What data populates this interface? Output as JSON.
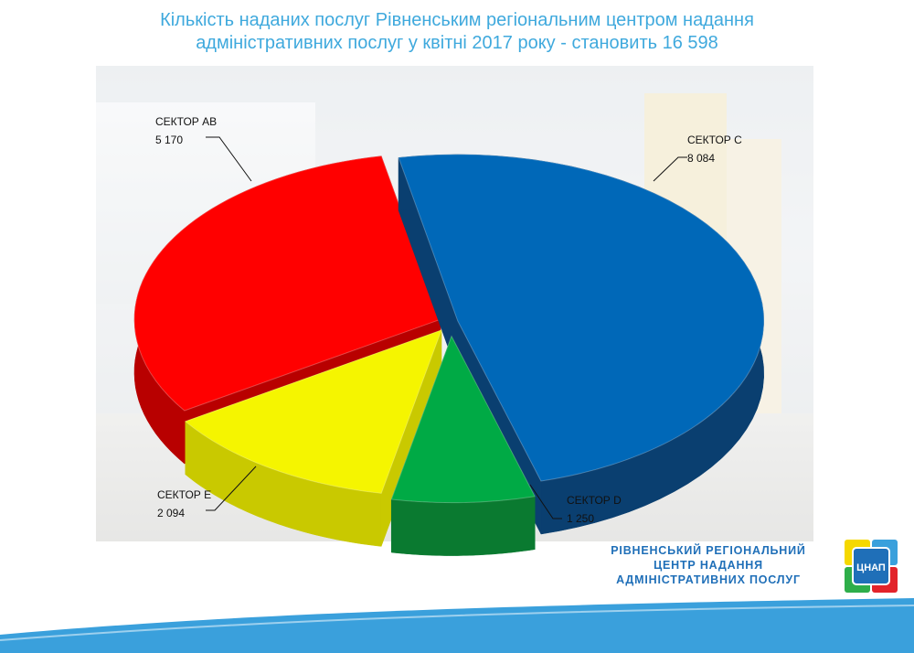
{
  "title": {
    "line1": "Кількість наданих послуг Рівненським регіональним центром надання",
    "line2": "адміністративних послуг у квітні 2017 року - становить  16 598"
  },
  "chart_data": {
    "type": "pie",
    "title": "Кількість наданих послуг Рівненським регіональним центром надання адміністративних послуг у квітні 2017 року - становить  16 598",
    "slices": [
      {
        "label": "СЕКТОР С",
        "value": 8084,
        "value_text": "8 084",
        "color": "#0068b8",
        "side": "#0a3f70"
      },
      {
        "label": "СЕКТОР D",
        "value": 1250,
        "value_text": "1 250",
        "color": "#00aa45",
        "side": "#0a7a30"
      },
      {
        "label": "СЕКТОР Е",
        "value": 2094,
        "value_text": "2 094",
        "color": "#f5f500",
        "side": "#c9c900"
      },
      {
        "label": "СЕКТОР АВ",
        "value": 5170,
        "value_text": "5 170",
        "color": "#ff0000",
        "side": "#b80000"
      }
    ]
  },
  "organization": {
    "line1": "РІВНЕНСЬКИЙ РЕГІОНАЛЬНИЙ",
    "line2": "ЦЕНТР НАДАННЯ",
    "line3": "АДМІНІСТРАТИВНИХ ПОСЛУГ"
  },
  "logo": {
    "text": "ЦНАП",
    "colors": [
      "#f5d800",
      "#3aa0dc",
      "#2eae4a",
      "#e2232a"
    ]
  },
  "footer_color": "#3aa0dc"
}
